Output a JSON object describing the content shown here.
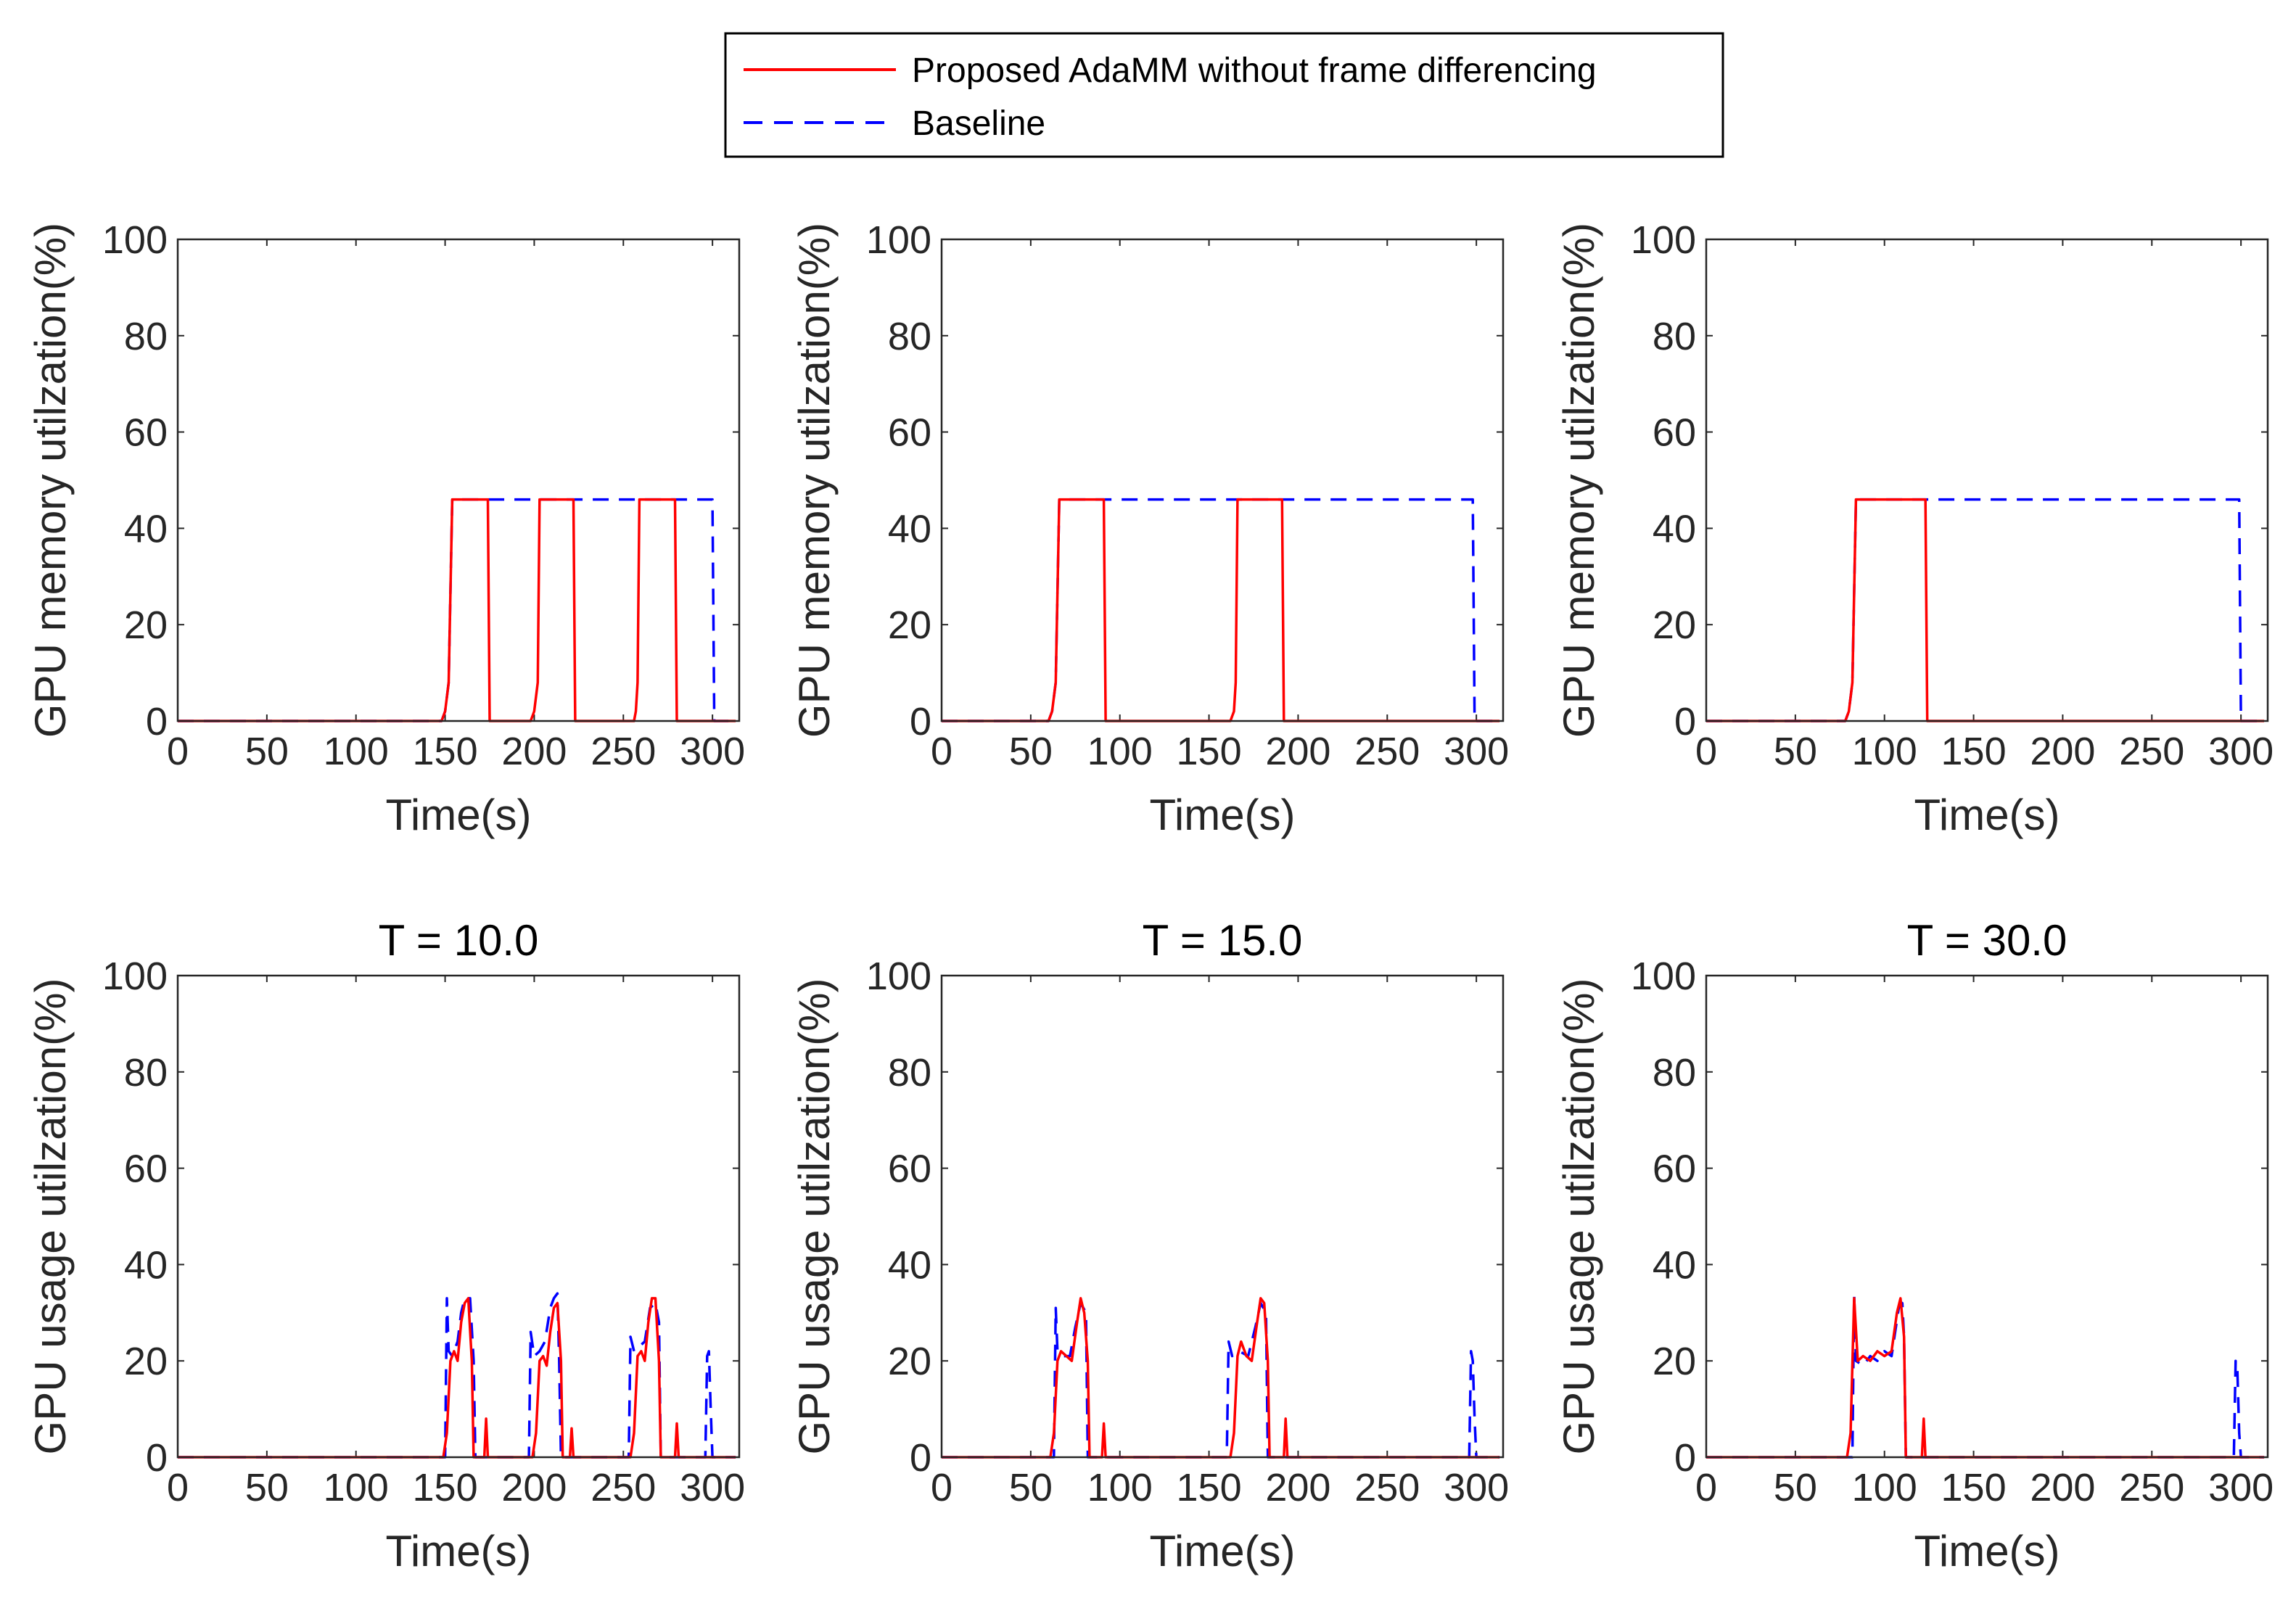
{
  "legend": {
    "entries": [
      {
        "label": "Proposed AdaMM without frame differencing",
        "color": "#ff0000",
        "style": "solid"
      },
      {
        "label": "Baseline",
        "color": "#0000ff",
        "style": "dashed"
      }
    ]
  },
  "colors": {
    "proposed": "#ff0000",
    "baseline": "#0000ff",
    "axis": "#262626"
  },
  "chart_data": [
    {
      "type": "line",
      "id": "mem-T10",
      "title": "",
      "xlabel": "Time(s)",
      "ylabel": "GPU memory utilzation(%)",
      "xlim": [
        0,
        315
      ],
      "ylim": [
        0,
        100
      ],
      "xticks": [
        0,
        50,
        100,
        150,
        200,
        250,
        300
      ],
      "yticks": [
        0,
        20,
        40,
        60,
        80,
        100
      ],
      "series": [
        {
          "name": "Proposed AdaMM without frame differencing",
          "points": [
            [
              0,
              0
            ],
            [
              148,
              0
            ],
            [
              150,
              2
            ],
            [
              152,
              8
            ],
            [
              154,
              46
            ],
            [
              174,
              46
            ],
            [
              175,
              0
            ],
            [
              198,
              0
            ],
            [
              200,
              2
            ],
            [
              202,
              8
            ],
            [
              203,
              46
            ],
            [
              222,
              46
            ],
            [
              223,
              0
            ],
            [
              256,
              0
            ],
            [
              257,
              2
            ],
            [
              258,
              8
            ],
            [
              259,
              46
            ],
            [
              279,
              46
            ],
            [
              280,
              0
            ],
            [
              313,
              0
            ]
          ]
        },
        {
          "name": "Baseline",
          "points": [
            [
              0,
              0
            ],
            [
              148,
              0
            ],
            [
              150,
              2
            ],
            [
              152,
              8
            ],
            [
              154,
              46
            ],
            [
              300,
              46
            ],
            [
              301,
              0
            ],
            [
              313,
              0
            ]
          ]
        }
      ]
    },
    {
      "type": "line",
      "id": "mem-T15",
      "title": "",
      "xlabel": "Time(s)",
      "ylabel": "GPU memory utilzation(%)",
      "xlim": [
        0,
        315
      ],
      "ylim": [
        0,
        100
      ],
      "xticks": [
        0,
        50,
        100,
        150,
        200,
        250,
        300
      ],
      "yticks": [
        0,
        20,
        40,
        60,
        80,
        100
      ],
      "series": [
        {
          "name": "Proposed AdaMM without frame differencing",
          "points": [
            [
              0,
              0
            ],
            [
              60,
              0
            ],
            [
              62,
              2
            ],
            [
              64,
              8
            ],
            [
              66,
              46
            ],
            [
              91,
              46
            ],
            [
              92,
              0
            ],
            [
              162,
              0
            ],
            [
              164,
              2
            ],
            [
              165,
              8
            ],
            [
              166,
              46
            ],
            [
              191,
              46
            ],
            [
              192,
              0
            ],
            [
              313,
              0
            ]
          ]
        },
        {
          "name": "Baseline",
          "points": [
            [
              0,
              0
            ],
            [
              60,
              0
            ],
            [
              62,
              2
            ],
            [
              64,
              8
            ],
            [
              66,
              46
            ],
            [
              298,
              46
            ],
            [
              299,
              0
            ],
            [
              313,
              0
            ]
          ]
        }
      ]
    },
    {
      "type": "line",
      "id": "mem-T30",
      "title": "",
      "xlabel": "Time(s)",
      "ylabel": "GPU memory utilzation(%)",
      "xlim": [
        0,
        315
      ],
      "ylim": [
        0,
        100
      ],
      "xticks": [
        0,
        50,
        100,
        150,
        200,
        250,
        300
      ],
      "yticks": [
        0,
        20,
        40,
        60,
        80,
        100
      ],
      "series": [
        {
          "name": "Proposed AdaMM without frame differencing",
          "points": [
            [
              0,
              0
            ],
            [
              78,
              0
            ],
            [
              80,
              2
            ],
            [
              82,
              8
            ],
            [
              84,
              46
            ],
            [
              123,
              46
            ],
            [
              124,
              0
            ],
            [
              313,
              0
            ]
          ]
        },
        {
          "name": "Baseline",
          "points": [
            [
              0,
              0
            ],
            [
              78,
              0
            ],
            [
              80,
              2
            ],
            [
              82,
              8
            ],
            [
              84,
              46
            ],
            [
              299,
              46
            ],
            [
              300,
              0
            ],
            [
              313,
              0
            ]
          ]
        }
      ]
    },
    {
      "type": "line",
      "id": "usage-T10",
      "title": "T = 10.0",
      "xlabel": "Time(s)",
      "ylabel": "GPU usage utilzation(%)",
      "xlim": [
        0,
        315
      ],
      "ylim": [
        0,
        100
      ],
      "xticks": [
        0,
        50,
        100,
        150,
        200,
        250,
        300
      ],
      "yticks": [
        0,
        20,
        40,
        60,
        80,
        100
      ],
      "series": [
        {
          "name": "Proposed AdaMM without frame differencing",
          "points": [
            [
              0,
              0
            ],
            [
              149,
              0
            ],
            [
              151,
              5
            ],
            [
              153,
              20
            ],
            [
              155,
              22
            ],
            [
              157,
              20
            ],
            [
              159,
              28
            ],
            [
              161,
              32
            ],
            [
              163,
              33
            ],
            [
              165,
              20
            ],
            [
              166,
              0
            ],
            [
              172,
              0
            ],
            [
              173,
              8
            ],
            [
              174,
              0
            ],
            [
              199,
              0
            ],
            [
              201,
              5
            ],
            [
              203,
              20
            ],
            [
              205,
              21
            ],
            [
              207,
              19
            ],
            [
              209,
              26
            ],
            [
              211,
              31
            ],
            [
              213,
              32
            ],
            [
              215,
              20
            ],
            [
              216,
              0
            ],
            [
              220,
              0
            ],
            [
              221,
              6
            ],
            [
              222,
              0
            ],
            [
              254,
              0
            ],
            [
              256,
              5
            ],
            [
              258,
              21
            ],
            [
              260,
              22
            ],
            [
              262,
              20
            ],
            [
              264,
              28
            ],
            [
              266,
              33
            ],
            [
              268,
              33
            ],
            [
              270,
              20
            ],
            [
              271,
              0
            ],
            [
              279,
              0
            ],
            [
              280,
              7
            ],
            [
              281,
              0
            ],
            [
              313,
              0
            ]
          ]
        },
        {
          "name": "Baseline",
          "points": [
            [
              0,
              0
            ],
            [
              150,
              0
            ],
            [
              151,
              33
            ],
            [
              152,
              22
            ],
            [
              154,
              21
            ],
            [
              157,
              24
            ],
            [
              159,
              30
            ],
            [
              161,
              33
            ],
            [
              164,
              33
            ],
            [
              166,
              20
            ],
            [
              167,
              0
            ],
            [
              197,
              0
            ],
            [
              198,
              26
            ],
            [
              200,
              21
            ],
            [
              203,
              22
            ],
            [
              206,
              24
            ],
            [
              209,
              31
            ],
            [
              211,
              33
            ],
            [
              213,
              34
            ],
            [
              214,
              20
            ],
            [
              215,
              0
            ],
            [
              253,
              0
            ],
            [
              254,
              25
            ],
            [
              256,
              22
            ],
            [
              259,
              23
            ],
            [
              262,
              24
            ],
            [
              265,
              31
            ],
            [
              268,
              32
            ],
            [
              270,
              28
            ],
            [
              271,
              0
            ],
            [
              296,
              0
            ],
            [
              297,
              21
            ],
            [
              298,
              22
            ],
            [
              299,
              10
            ],
            [
              300,
              0
            ],
            [
              313,
              0
            ]
          ]
        }
      ]
    },
    {
      "type": "line",
      "id": "usage-T15",
      "title": "T = 15.0",
      "xlabel": "Time(s)",
      "ylabel": "GPU usage utilzation(%)",
      "xlim": [
        0,
        315
      ],
      "ylim": [
        0,
        100
      ],
      "xticks": [
        0,
        50,
        100,
        150,
        200,
        250,
        300
      ],
      "yticks": [
        0,
        20,
        40,
        60,
        80,
        100
      ],
      "series": [
        {
          "name": "Proposed AdaMM without frame differencing",
          "points": [
            [
              0,
              0
            ],
            [
              61,
              0
            ],
            [
              63,
              5
            ],
            [
              65,
              20
            ],
            [
              67,
              22
            ],
            [
              70,
              21
            ],
            [
              73,
              20
            ],
            [
              76,
              28
            ],
            [
              78,
              33
            ],
            [
              80,
              30
            ],
            [
              82,
              20
            ],
            [
              83,
              0
            ],
            [
              90,
              0
            ],
            [
              91,
              7
            ],
            [
              92,
              0
            ],
            [
              162,
              0
            ],
            [
              164,
              5
            ],
            [
              166,
              21
            ],
            [
              168,
              24
            ],
            [
              171,
              21
            ],
            [
              174,
              20
            ],
            [
              177,
              28
            ],
            [
              179,
              33
            ],
            [
              181,
              32
            ],
            [
              183,
              20
            ],
            [
              184,
              0
            ],
            [
              192,
              0
            ],
            [
              193,
              8
            ],
            [
              194,
              0
            ],
            [
              313,
              0
            ]
          ]
        },
        {
          "name": "Baseline",
          "points": [
            [
              0,
              0
            ],
            [
              63,
              0
            ],
            [
              64,
              31
            ],
            [
              65,
              22
            ],
            [
              68,
              21
            ],
            [
              72,
              21
            ],
            [
              75,
              27
            ],
            [
              78,
              32
            ],
            [
              81,
              30
            ],
            [
              82,
              0
            ],
            [
              160,
              0
            ],
            [
              161,
              24
            ],
            [
              163,
              21
            ],
            [
              167,
              22
            ],
            [
              172,
              21
            ],
            [
              176,
              27
            ],
            [
              179,
              32
            ],
            [
              182,
              30
            ],
            [
              183,
              0
            ],
            [
              296,
              0
            ],
            [
              297,
              22
            ],
            [
              298,
              20
            ],
            [
              299,
              8
            ],
            [
              300,
              0
            ],
            [
              313,
              0
            ]
          ]
        }
      ]
    },
    {
      "type": "line",
      "id": "usage-T30",
      "title": "T = 30.0",
      "xlabel": "Time(s)",
      "ylabel": "GPU usage utilzation(%)",
      "xlim": [
        0,
        315
      ],
      "ylim": [
        0,
        100
      ],
      "xticks": [
        0,
        50,
        100,
        150,
        200,
        250,
        300
      ],
      "yticks": [
        0,
        20,
        40,
        60,
        80,
        100
      ],
      "series": [
        {
          "name": "Proposed AdaMM without frame differencing",
          "points": [
            [
              0,
              0
            ],
            [
              79,
              0
            ],
            [
              81,
              5
            ],
            [
              83,
              33
            ],
            [
              85,
              20
            ],
            [
              88,
              21
            ],
            [
              92,
              20
            ],
            [
              96,
              22
            ],
            [
              100,
              21
            ],
            [
              104,
              22
            ],
            [
              107,
              30
            ],
            [
              109,
              33
            ],
            [
              111,
              25
            ],
            [
              112,
              0
            ],
            [
              121,
              0
            ],
            [
              122,
              8
            ],
            [
              123,
              0
            ],
            [
              313,
              0
            ]
          ]
        },
        {
          "name": "Baseline",
          "points": [
            [
              0,
              0
            ],
            [
              82,
              0
            ],
            [
              83,
              34
            ],
            [
              84,
              20
            ],
            [
              88,
              19
            ],
            [
              92,
              21
            ],
            [
              96,
              20
            ],
            [
              100,
              22
            ],
            [
              104,
              21
            ],
            [
              108,
              31
            ],
            [
              110,
              32
            ],
            [
              111,
              25
            ],
            [
              112,
              0
            ],
            [
              296,
              0
            ],
            [
              297,
              20
            ],
            [
              298,
              18
            ],
            [
              299,
              5
            ],
            [
              300,
              0
            ],
            [
              313,
              0
            ]
          ]
        }
      ]
    }
  ]
}
